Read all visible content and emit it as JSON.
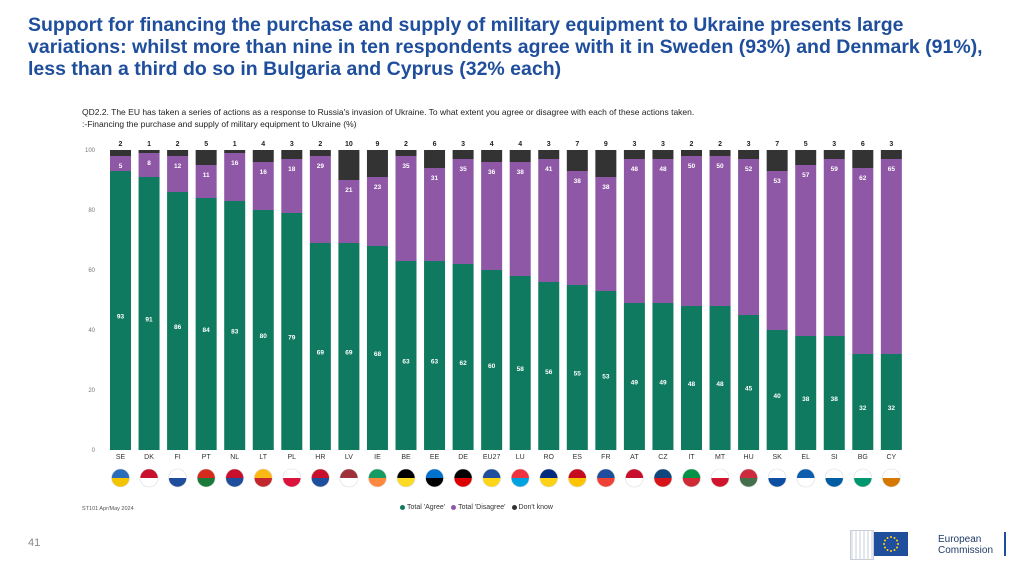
{
  "title": "Support for financing the purchase and supply of military equipment to Ukraine presents large variations: whilst more than nine in ten respondents agree with it in Sweden (93%) and Denmark (91%), less than a third do so in Bulgaria and Cyprus (32% each)",
  "question_line1": "QD2.2. The EU has taken a series of actions as a response to Russia's invasion of Ukraine. To what extent you agree or disagree with each of these actions taken.",
  "question_line2": ":-Financing the purchase and supply of military equipment to Ukraine (%)",
  "source": "ST101 Apr/May 2024",
  "page_number": "41",
  "logo_text": [
    "European",
    "Commission"
  ],
  "colors": {
    "agree": "#0f7a5f",
    "disagree": "#8e58a6",
    "dont_know": "#333333",
    "flag_blue": "#1f4e9c"
  },
  "chart_data": {
    "type": "bar",
    "stacked": true,
    "categories": [
      "SE",
      "DK",
      "FI",
      "PT",
      "NL",
      "LT",
      "PL",
      "HR",
      "LV",
      "IE",
      "BE",
      "EE",
      "DE",
      "EU27",
      "LU",
      "RO",
      "ES",
      "FR",
      "AT",
      "CZ",
      "IT",
      "MT",
      "HU",
      "SK",
      "EL",
      "SI",
      "BG",
      "CY"
    ],
    "series": [
      {
        "name": "Total 'Agree'",
        "color": "#0f7a5f",
        "values": [
          93,
          91,
          86,
          84,
          83,
          80,
          79,
          69,
          69,
          68,
          63,
          63,
          62,
          60,
          58,
          56,
          55,
          53,
          49,
          49,
          48,
          48,
          45,
          40,
          38,
          38,
          32,
          32
        ]
      },
      {
        "name": "Total 'Disagree'",
        "color": "#8e58a6",
        "values": [
          5,
          8,
          12,
          11,
          16,
          16,
          18,
          29,
          21,
          23,
          35,
          31,
          35,
          36,
          38,
          41,
          38,
          38,
          48,
          48,
          50,
          50,
          52,
          53,
          57,
          59,
          62,
          65
        ]
      },
      {
        "name": "Don't know",
        "color": "#333333",
        "values": [
          2,
          1,
          2,
          5,
          1,
          4,
          3,
          2,
          10,
          9,
          2,
          6,
          3,
          4,
          4,
          3,
          7,
          9,
          3,
          3,
          2,
          2,
          3,
          7,
          5,
          3,
          6,
          3
        ]
      }
    ],
    "ylim": [
      0,
      100
    ],
    "yticks": [
      "0",
      "20",
      "40",
      "60",
      "80",
      "100"
    ],
    "legend_position": "bottom"
  }
}
